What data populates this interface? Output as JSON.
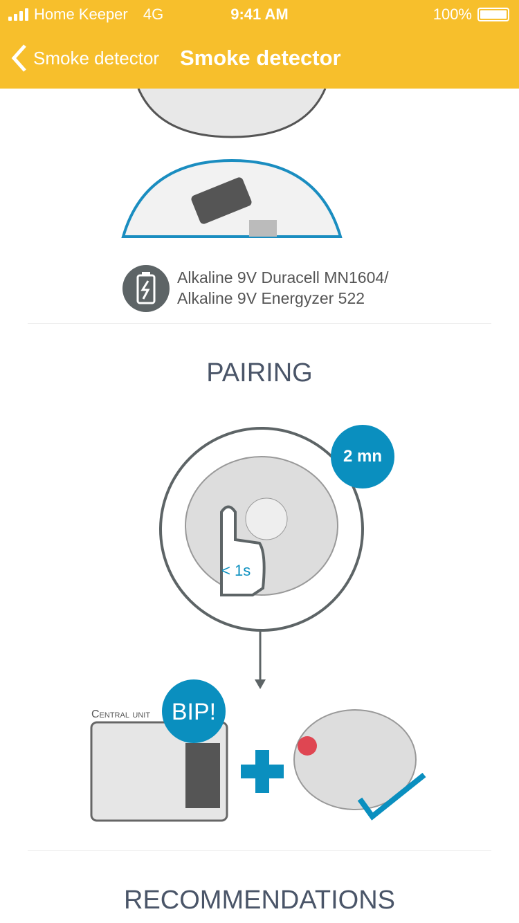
{
  "status": {
    "carrier": "Home Keeper",
    "network": "4G",
    "time": "9:41 AM",
    "battery": "100%"
  },
  "nav": {
    "back_label": "Smoke detector",
    "title": "Smoke detector"
  },
  "battery_info": {
    "line1": "Alkaline 9V Duracell MN1604/",
    "line2": "Alkaline 9V Energyzer 522"
  },
  "pairing": {
    "heading": "PAIRING",
    "timer_badge": "2 mn",
    "press_label": "< 1s",
    "central_unit_label": "Central unit",
    "bip_badge": "BIP!"
  },
  "recommendations": {
    "heading": "RECOMMENDATIONS"
  },
  "colors": {
    "header": "#f7bf2c",
    "accent": "#0a8fbf",
    "text": "#4a5568"
  }
}
